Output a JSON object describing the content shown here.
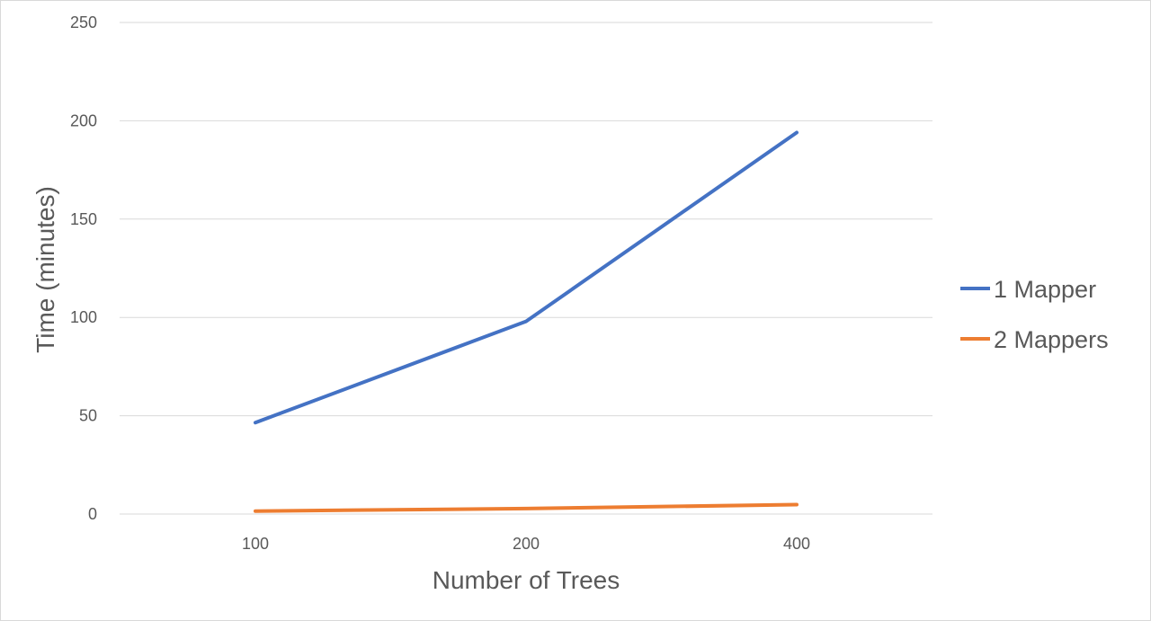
{
  "chart_data": {
    "type": "line",
    "title": "",
    "xlabel": "Number of Trees",
    "ylabel": "Time (minutes)",
    "categories": [
      "100",
      "200",
      "400"
    ],
    "ylim": [
      0,
      250
    ],
    "yticks": [
      0,
      50,
      100,
      150,
      200,
      250
    ],
    "grid": true,
    "legend_position": "right",
    "series": [
      {
        "name": "1 Mapper",
        "values": [
          46.5,
          98,
          194
        ],
        "color": "#4472c4"
      },
      {
        "name": "2 Mappers",
        "values": [
          1.5,
          2.8,
          4.8
        ],
        "color": "#ed7d31"
      }
    ],
    "colors": {
      "gridline": "#d9d9d9",
      "text": "#595959"
    }
  }
}
